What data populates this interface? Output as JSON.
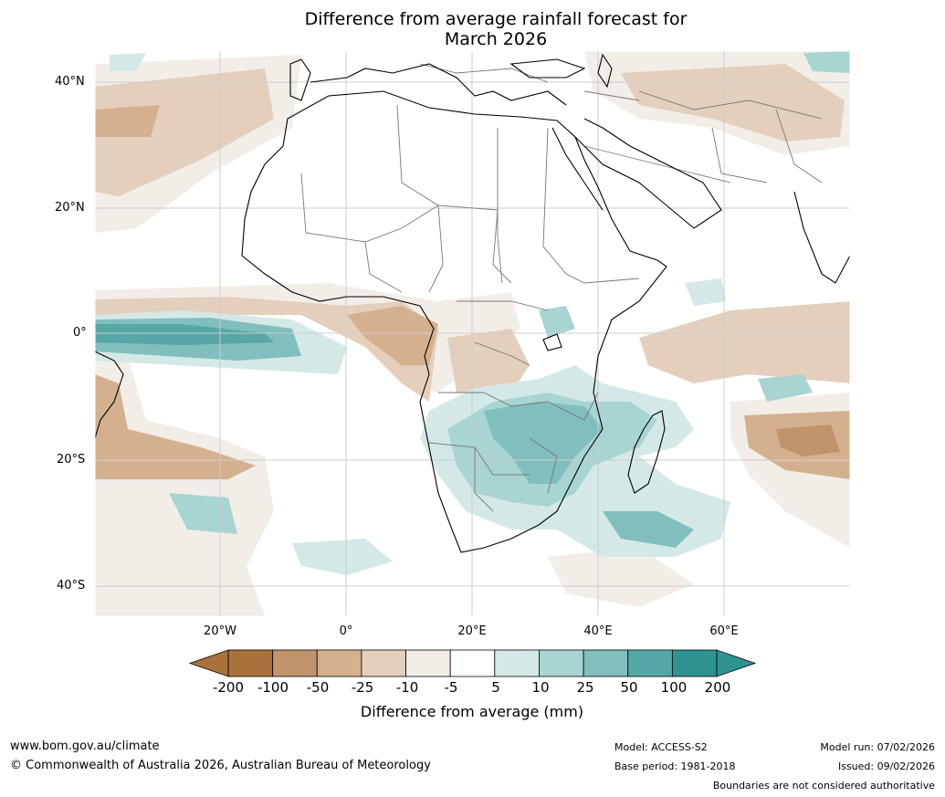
{
  "title": {
    "line1": "Difference from average rainfall forecast for",
    "line2": "March 2026"
  },
  "axes": {
    "lat_labels": [
      "40°N",
      "20°N",
      "0°",
      "20°S",
      "40°S"
    ],
    "lon_labels": [
      "20°W",
      "0°",
      "20°E",
      "40°E",
      "60°E"
    ]
  },
  "legend": {
    "tick_labels": [
      "-200",
      "-100",
      "-50",
      "-25",
      "-10",
      "-5",
      "5",
      "10",
      "25",
      "50",
      "100",
      "200"
    ],
    "colors": [
      "#a8723a",
      "#c0936a",
      "#d4b08e",
      "#e3cfbc",
      "#f2ede7",
      "#ffffff",
      "#d4e9e7",
      "#a8d4d1",
      "#80bfbd",
      "#55a8a6",
      "#2e9390"
    ],
    "extend_low_color": "#a8723a",
    "extend_high_color": "#2e9390",
    "title": "Difference from average (mm)"
  },
  "footer": {
    "website": "www.bom.gov.au/climate",
    "copyright": "© Commonwealth of Australia 2026, Australian Bureau of Meteorology",
    "model": "Model: ACCESS-S2",
    "base_period": "Base period: 1981-2018",
    "model_run": "Model run: 07/02/2026",
    "issued": "Issued: 09/02/2026",
    "disclaimer": "Boundaries are not considered authoritative"
  }
}
